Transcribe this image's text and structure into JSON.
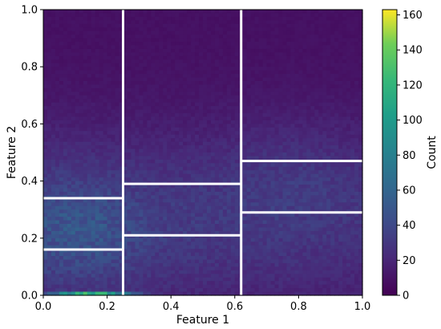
{
  "chart_data": {
    "type": "heatmap",
    "xlabel": "Feature 1",
    "ylabel": "Feature 2",
    "colorbar_label": "Count",
    "colormap": "viridis",
    "xlim": [
      0.0,
      1.0
    ],
    "ylim": [
      0.0,
      1.0
    ],
    "clim": [
      0,
      163
    ],
    "x_ticks": [
      "0.0",
      "0.2",
      "0.4",
      "0.6",
      "0.8",
      "1.0"
    ],
    "y_ticks": [
      "0.0",
      "0.2",
      "0.4",
      "0.6",
      "0.8",
      "1.0"
    ],
    "colorbar_ticks": [
      "0",
      "20",
      "40",
      "60",
      "80",
      "100",
      "120",
      "140",
      "160"
    ],
    "colorbar_tick_values": [
      0,
      20,
      40,
      60,
      80,
      100,
      120,
      140,
      160
    ],
    "grid": false,
    "partition_line_color": "#ffffff",
    "partition_lines": [
      {
        "orientation": "vertical",
        "x": 0.25,
        "y_range": [
          0.0,
          1.0
        ]
      },
      {
        "orientation": "vertical",
        "x": 0.62,
        "y_range": [
          0.0,
          1.0
        ]
      },
      {
        "orientation": "horizontal",
        "y": 0.34,
        "x_range": [
          0.0,
          0.25
        ]
      },
      {
        "orientation": "horizontal",
        "y": 0.16,
        "x_range": [
          0.0,
          0.25
        ]
      },
      {
        "orientation": "horizontal",
        "y": 0.39,
        "x_range": [
          0.25,
          0.62
        ]
      },
      {
        "orientation": "horizontal",
        "y": 0.21,
        "x_range": [
          0.25,
          0.62
        ]
      },
      {
        "orientation": "horizontal",
        "y": 0.47,
        "x_range": [
          0.62,
          1.0
        ]
      },
      {
        "orientation": "horizontal",
        "y": 0.29,
        "x_range": [
          0.62,
          1.0
        ]
      }
    ]
  }
}
